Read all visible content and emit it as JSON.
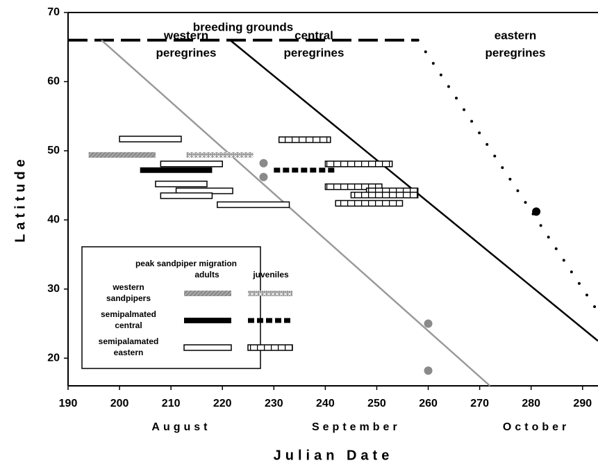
{
  "chart_data": {
    "type": "migration",
    "x_label": "Julian Date",
    "y_label": "Latitude",
    "xlim": [
      190,
      293
    ],
    "ylim": [
      16,
      70
    ],
    "xticks": [
      190,
      200,
      210,
      220,
      230,
      240,
      250,
      260,
      270,
      280,
      290
    ],
    "yticks": [
      20,
      30,
      40,
      50,
      60,
      70
    ],
    "months": [
      {
        "label": "August",
        "x": 212
      },
      {
        "label": "September",
        "x": 246
      },
      {
        "label": "October",
        "x": 281
      }
    ],
    "lines": [
      {
        "label": [
          "breeding grounds"
        ],
        "color": "#000000",
        "dash": "dashed",
        "x": [
          190,
          258
        ],
        "y": [
          66,
          66
        ]
      },
      {
        "label": [
          "western",
          "peregrines"
        ],
        "color": "#9a9a9a",
        "dash": "solid",
        "x": [
          196.5,
          272
        ],
        "y": [
          66,
          16
        ]
      },
      {
        "label": [
          "central",
          "peregrines"
        ],
        "color": "#000000",
        "dash": "solid",
        "x": [
          221.5,
          293
        ],
        "y": [
          66,
          22.5
        ]
      },
      {
        "label": [
          "eastern",
          "peregrines"
        ],
        "color": "#000000",
        "dash": "dotted",
        "x": [
          258,
          293
        ],
        "y": [
          66,
          26.7
        ]
      }
    ],
    "points": [
      {
        "color": "#8a8a8a",
        "x": [
          228,
          228,
          260,
          260
        ],
        "y": [
          48.2,
          46.2,
          25,
          18.2
        ]
      },
      {
        "color": "#000000",
        "x": [
          281
        ],
        "y": [
          41.2
        ]
      }
    ],
    "legend": {
      "title": "peak sandpiper migration",
      "columns": [
        "adults",
        "juveniles"
      ]
    },
    "groups": [
      {
        "label": [
          "western",
          "sandpipers"
        ],
        "adults": {
          "style": "hatch",
          "start": [
            194
          ],
          "end": [
            207
          ],
          "lat": [
            49.4
          ]
        },
        "juveniles": {
          "style": "cross",
          "start": [
            213
          ],
          "end": [
            226
          ],
          "lat": [
            49.4
          ]
        }
      },
      {
        "label": [
          "semipalmated",
          "central"
        ],
        "adults": {
          "style": "solid",
          "start": [
            204
          ],
          "end": [
            218
          ],
          "lat": [
            47.2
          ]
        },
        "juveniles": {
          "style": "dash",
          "start": [
            230
          ],
          "end": [
            242
          ],
          "lat": [
            47.2
          ]
        }
      },
      {
        "label": [
          "semipalamated",
          "eastern"
        ],
        "adults": {
          "style": "open",
          "start": [
            200,
            208,
            207,
            211,
            208,
            219
          ],
          "end": [
            212,
            220,
            217,
            222,
            218,
            233
          ],
          "lat": [
            51.7,
            48.1,
            45.2,
            44.2,
            43.5,
            42.2
          ]
        },
        "juveniles": {
          "style": "checker",
          "start": [
            231,
            240,
            240,
            248,
            245,
            242
          ],
          "end": [
            241,
            253,
            251,
            258,
            258,
            255
          ],
          "lat": [
            51.6,
            48.1,
            44.8,
            44.2,
            43.6,
            42.4
          ]
        }
      }
    ]
  }
}
